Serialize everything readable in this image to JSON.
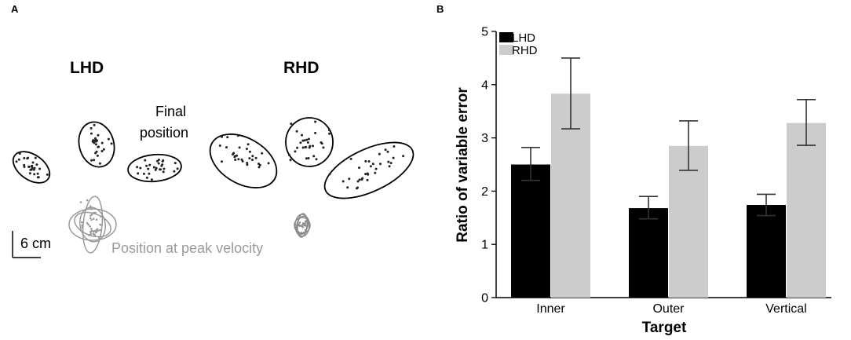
{
  "panel_a": {
    "letter": "A",
    "left_title": "LHD",
    "right_title": "RHD",
    "final_label_line1": "Final",
    "final_label_line2": "position",
    "peak_label": "Position at peak velocity",
    "scale_label": "6 cm"
  },
  "panel_b": {
    "letter": "B"
  },
  "chart_data": {
    "type": "bar",
    "title": "",
    "xlabel": "Target",
    "ylabel": "Ratio of variable error",
    "categories": [
      "Inner",
      "Outer",
      "Vertical"
    ],
    "ylim": [
      0,
      5
    ],
    "yticks": [
      "0",
      "1",
      "2",
      "3",
      "4",
      "5"
    ],
    "series": [
      {
        "name": "LHD",
        "color": "#000000",
        "values": [
          2.5,
          1.68,
          1.74
        ],
        "error_low": [
          2.2,
          1.48,
          1.54
        ],
        "error_high": [
          2.82,
          1.9,
          1.94
        ]
      },
      {
        "name": "RHD",
        "color": "#cccccc",
        "values": [
          3.83,
          2.85,
          3.28
        ],
        "error_low": [
          3.17,
          2.39,
          2.86
        ],
        "error_high": [
          4.5,
          3.32,
          3.72
        ]
      }
    ],
    "legend_position": "top-left",
    "grid": false
  }
}
